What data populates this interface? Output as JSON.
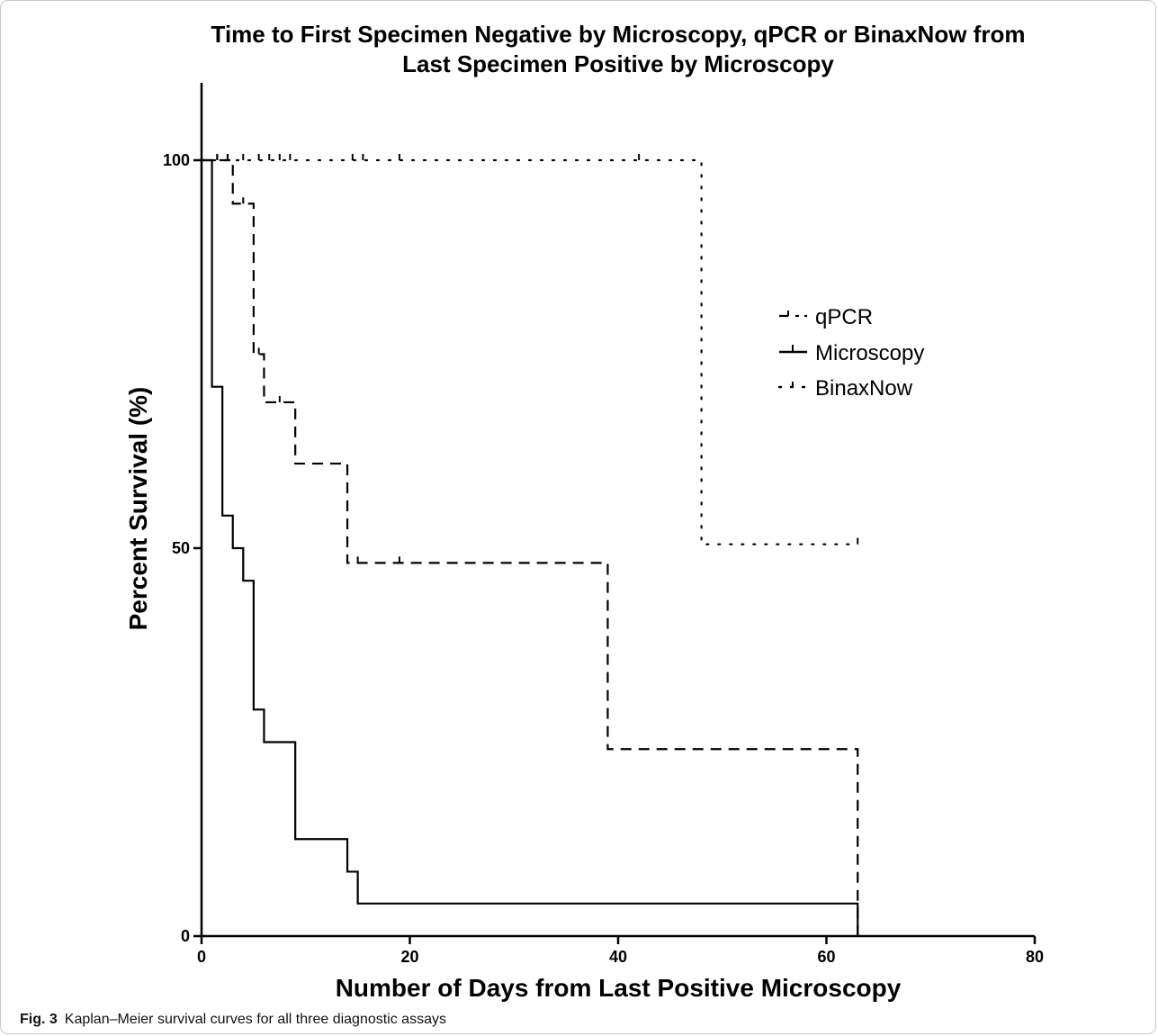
{
  "chart_data": {
    "type": "line",
    "step": true,
    "title": [
      "Time to First Specimen Negative by Microscopy, qPCR or BinaxNow from",
      "Last Specimen Positive by Microscopy"
    ],
    "xlabel": "Number of Days from Last Positive Microscopy",
    "ylabel": "Percent Survival (%)",
    "xlim": [
      0,
      80
    ],
    "ylim": [
      0,
      100
    ],
    "xticks": [
      "0",
      "20",
      "40",
      "60",
      "80"
    ],
    "yticks": [
      "0",
      "50",
      "100"
    ],
    "grid": false,
    "legend_position": "right",
    "series": [
      {
        "name": "qPCR",
        "style": "dashed",
        "steps": [
          [
            0,
            100
          ],
          [
            3,
            94.4
          ],
          [
            5,
            75
          ],
          [
            6,
            68.8
          ],
          [
            9,
            60.9
          ],
          [
            14,
            48.1
          ],
          [
            39,
            24.1
          ],
          [
            63,
            0
          ]
        ],
        "censored": [
          [
            1.5,
            100
          ],
          [
            2.5,
            100
          ],
          [
            4,
            94.4
          ],
          [
            5.5,
            75
          ],
          [
            7.5,
            68.8
          ],
          [
            15,
            48.1
          ],
          [
            19,
            48.1
          ]
        ]
      },
      {
        "name": "Microscopy",
        "style": "solid",
        "steps": [
          [
            0,
            100
          ],
          [
            1,
            70.8
          ],
          [
            2,
            54.2
          ],
          [
            3,
            50
          ],
          [
            4,
            45.8
          ],
          [
            5,
            29.2
          ],
          [
            6,
            25
          ],
          [
            9,
            12.5
          ],
          [
            14,
            8.3
          ],
          [
            15,
            4.2
          ],
          [
            63,
            0
          ]
        ],
        "censored": []
      },
      {
        "name": "BinaxNow",
        "style": "dotted",
        "steps": [
          [
            0,
            100
          ],
          [
            48,
            50.5
          ],
          [
            63,
            50.5
          ]
        ],
        "censored": [
          [
            1.5,
            100
          ],
          [
            2.5,
            100
          ],
          [
            4,
            100
          ],
          [
            5.5,
            100
          ],
          [
            6.5,
            100
          ],
          [
            7.5,
            100
          ],
          [
            8.5,
            100
          ],
          [
            14.5,
            100
          ],
          [
            15.5,
            100
          ],
          [
            19,
            100
          ],
          [
            42,
            100
          ],
          [
            63,
            50.5
          ]
        ]
      }
    ]
  },
  "caption": {
    "label": "Fig. 3",
    "text": "Kaplan–Meier survival curves for all three diagnostic assays"
  }
}
